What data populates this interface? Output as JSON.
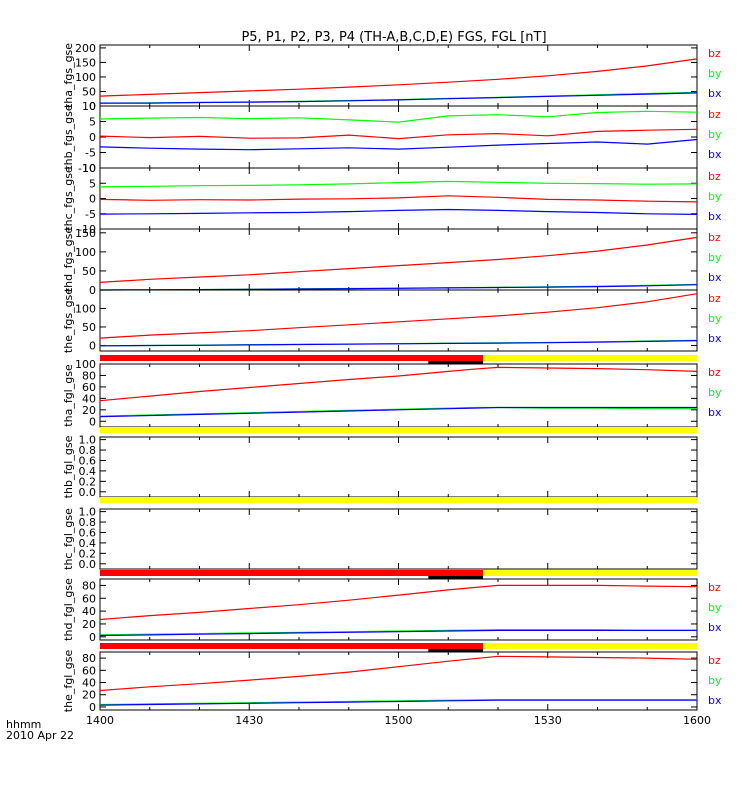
{
  "title": "P5, P1, P2, P3, P4 (TH-A,B,C,D,E) FGS, FGL [nT]",
  "time_axis": {
    "ticks": [
      "1400",
      "1430",
      "1500",
      "1530",
      "1600"
    ],
    "unit_label": "hhmm",
    "date_label": "2010 Apr 22"
  },
  "colors": {
    "bx": "#0000ff",
    "by": "#00ff00",
    "bz": "#ff0000",
    "bar_red": "#ff0000",
    "bar_yellow": "#ffff00",
    "axis": "#000000"
  },
  "chart_data": [
    {
      "type": "line",
      "ylabel": "tha_fgs_gse",
      "ylim": [
        0,
        210
      ],
      "yticks": [
        "200",
        "150",
        "100",
        "50",
        "0"
      ],
      "legend": [
        "bz",
        "by",
        "bx"
      ],
      "x": [
        1400,
        1410,
        1420,
        1430,
        1440,
        1450,
        1500,
        1510,
        1520,
        1530,
        1540,
        1550,
        1600
      ],
      "series": [
        {
          "name": "bz",
          "values": [
            34,
            40,
            46,
            52,
            58,
            65,
            73,
            82,
            92,
            104,
            119,
            138,
            162
          ]
        },
        {
          "name": "by",
          "values": [
            10,
            11,
            12,
            14,
            16,
            19,
            22,
            26,
            30,
            34,
            39,
            43,
            47
          ]
        },
        {
          "name": "bx",
          "values": [
            10,
            10,
            12,
            13,
            15,
            18,
            21,
            25,
            29,
            33,
            37,
            41,
            45
          ]
        }
      ]
    },
    {
      "type": "line",
      "ylabel": "thb_fgs_gse",
      "ylim": [
        -10,
        10
      ],
      "yticks": [
        "10",
        "5",
        "0",
        "-5",
        "-10"
      ],
      "legend": [
        "bz",
        "by",
        "bx"
      ],
      "x": [
        1400,
        1410,
        1420,
        1430,
        1440,
        1450,
        1500,
        1510,
        1520,
        1530,
        1540,
        1550,
        1600
      ],
      "series": [
        {
          "name": "bz",
          "values": [
            0.3,
            -0.2,
            0.2,
            -0.4,
            -0.3,
            0.6,
            -0.5,
            0.7,
            1.1,
            0.4,
            1.8,
            2.2,
            2.5
          ]
        },
        {
          "name": "by",
          "values": [
            5.8,
            6.1,
            6.3,
            5.9,
            6.2,
            5.5,
            4.8,
            6.8,
            7.2,
            6.5,
            7.9,
            8.3,
            8.0
          ]
        },
        {
          "name": "bx",
          "values": [
            -3.2,
            -3.6,
            -3.9,
            -4.1,
            -3.8,
            -3.5,
            -3.9,
            -3.3,
            -2.6,
            -2.1,
            -1.6,
            -2.3,
            -0.8
          ]
        }
      ]
    },
    {
      "type": "line",
      "ylabel": "thc_fgs_gse",
      "ylim": [
        -10,
        10
      ],
      "yticks": [
        "10",
        "5",
        "0",
        "-5",
        "-10"
      ],
      "legend": [
        "bz",
        "by",
        "bx"
      ],
      "x": [
        1400,
        1410,
        1420,
        1430,
        1440,
        1450,
        1500,
        1510,
        1520,
        1530,
        1540,
        1550,
        1600
      ],
      "series": [
        {
          "name": "bz",
          "values": [
            -0.3,
            -0.6,
            -0.4,
            -0.5,
            -0.2,
            -0.1,
            0.2,
            0.9,
            0.4,
            -0.3,
            -0.5,
            -0.9,
            -1.1
          ]
        },
        {
          "name": "by",
          "values": [
            3.8,
            4.0,
            4.2,
            4.3,
            4.5,
            4.8,
            5.2,
            5.6,
            5.3,
            5.0,
            4.9,
            4.7,
            4.8
          ]
        },
        {
          "name": "bx",
          "values": [
            -5.1,
            -5.0,
            -4.9,
            -4.7,
            -4.6,
            -4.3,
            -3.9,
            -3.6,
            -3.9,
            -4.3,
            -4.6,
            -5.0,
            -5.2
          ]
        }
      ]
    },
    {
      "type": "line",
      "ylabel": "thd_fgs_gse",
      "ylim": [
        0,
        160
      ],
      "yticks": [
        "150",
        "100",
        "50",
        "0"
      ],
      "legend": [
        "bz",
        "by",
        "bx"
      ],
      "x": [
        1400,
        1410,
        1420,
        1430,
        1440,
        1450,
        1500,
        1510,
        1520,
        1530,
        1540,
        1550,
        1600
      ],
      "series": [
        {
          "name": "bz",
          "values": [
            20,
            28,
            34,
            40,
            48,
            56,
            64,
            72,
            80,
            90,
            102,
            118,
            138
          ]
        },
        {
          "name": "by",
          "values": [
            0,
            0.5,
            1,
            2,
            3,
            4,
            5,
            6,
            7,
            8,
            10,
            12,
            15
          ]
        },
        {
          "name": "bx",
          "values": [
            0,
            0.5,
            1,
            1.5,
            2.5,
            3.5,
            4.5,
            5.5,
            6.5,
            7.5,
            9,
            11,
            14
          ]
        }
      ]
    },
    {
      "type": "line",
      "ylabel": "the_fgs_gse",
      "ylim": [
        -15,
        150
      ],
      "yticks": [
        "100",
        "50",
        "0"
      ],
      "legend": [
        "bz",
        "by",
        "bx"
      ],
      "x": [
        1400,
        1410,
        1420,
        1430,
        1440,
        1450,
        1500,
        1510,
        1520,
        1530,
        1540,
        1550,
        1600
      ],
      "series": [
        {
          "name": "bz",
          "values": [
            20,
            28,
            34,
            40,
            48,
            56,
            64,
            72,
            80,
            90,
            102,
            118,
            140
          ]
        },
        {
          "name": "by",
          "values": [
            -1,
            0,
            1,
            2,
            3,
            4,
            5,
            6,
            7,
            8,
            10,
            12,
            14
          ]
        },
        {
          "name": "bx",
          "values": [
            -1,
            0,
            0.5,
            1.5,
            2.5,
            3.5,
            4.5,
            5.5,
            6.5,
            7.5,
            9,
            11,
            13
          ]
        }
      ]
    },
    {
      "type": "line",
      "ylabel": "tha_fgl_gse",
      "ylim": [
        -10,
        100
      ],
      "yticks": [
        "100",
        "80",
        "60",
        "40",
        "20",
        "0"
      ],
      "legend": [
        "bz",
        "by",
        "bx"
      ],
      "bar": {
        "red_to": 1517,
        "marker_from": 1506,
        "marker_to": 1517
      },
      "x": [
        1400,
        1410,
        1420,
        1430,
        1440,
        1450,
        1500,
        1510,
        1515,
        1520,
        1530,
        1540,
        1550,
        1600
      ],
      "series": [
        {
          "name": "bz",
          "values": [
            36,
            44,
            52,
            59,
            66,
            73,
            79,
            87,
            91,
            94,
            93,
            92,
            90,
            87
          ]
        },
        {
          "name": "by",
          "values": [
            9,
            11,
            13,
            15,
            17,
            19,
            21,
            23,
            24,
            24,
            23,
            23,
            22,
            22
          ]
        },
        {
          "name": "bx",
          "values": [
            8,
            10,
            12,
            14,
            16,
            18,
            20,
            22,
            23,
            24,
            24,
            24,
            24,
            24
          ]
        }
      ]
    },
    {
      "type": "line",
      "ylabel": "thb_fgl_gse",
      "ylim": [
        -0.1,
        1.05
      ],
      "yticks": [
        "1.0",
        "0.8",
        "0.6",
        "0.4",
        "0.2",
        "0.0"
      ],
      "legend": [],
      "bar": {
        "red_to": 1400
      },
      "x": [],
      "series": []
    },
    {
      "type": "line",
      "ylabel": "thc_fgl_gse",
      "ylim": [
        -0.1,
        1.05
      ],
      "yticks": [
        "1.0",
        "0.8",
        "0.6",
        "0.4",
        "0.2",
        "0.0"
      ],
      "legend": [],
      "bar": {
        "red_to": 1400
      },
      "x": [],
      "series": []
    },
    {
      "type": "line",
      "ylabel": "thd_fgl_gse",
      "ylim": [
        -5,
        90
      ],
      "yticks": [
        "80",
        "60",
        "40",
        "20",
        "0"
      ],
      "legend": [
        "bz",
        "by",
        "bx"
      ],
      "bar": {
        "red_to": 1517,
        "marker_from": 1506,
        "marker_to": 1517
      },
      "x": [
        1400,
        1410,
        1420,
        1430,
        1440,
        1450,
        1500,
        1510,
        1520,
        1530,
        1540,
        1550,
        1600
      ],
      "series": [
        {
          "name": "bz",
          "values": [
            27,
            33,
            38,
            44,
            50,
            57,
            65,
            73,
            80,
            80,
            80,
            79,
            78
          ]
        },
        {
          "name": "by",
          "values": [
            3,
            4,
            5,
            6,
            7,
            8,
            9,
            10,
            11,
            11,
            11,
            10,
            10
          ]
        },
        {
          "name": "bx",
          "values": [
            2,
            3,
            4,
            5,
            6,
            7,
            8,
            9,
            10,
            10,
            10,
            10,
            10
          ]
        }
      ]
    },
    {
      "type": "line",
      "ylabel": "the_fgl_gse",
      "ylim": [
        -5,
        90
      ],
      "yticks": [
        "80",
        "60",
        "40",
        "20",
        "0"
      ],
      "legend": [
        "bz",
        "by",
        "bx"
      ],
      "bar": {
        "red_to": 1517,
        "marker_from": 1506,
        "marker_to": 1517
      },
      "x": [
        1400,
        1410,
        1420,
        1430,
        1440,
        1450,
        1500,
        1510,
        1520,
        1530,
        1540,
        1550,
        1600
      ],
      "series": [
        {
          "name": "bz",
          "values": [
            27,
            33,
            38,
            44,
            50,
            57,
            66,
            75,
            83,
            82,
            81,
            80,
            78
          ]
        },
        {
          "name": "by",
          "values": [
            4,
            5,
            6,
            7,
            8,
            9,
            10,
            11,
            12,
            12,
            12,
            12,
            12
          ]
        },
        {
          "name": "bx",
          "values": [
            3,
            4,
            5,
            6,
            7,
            8,
            9,
            10,
            11,
            11,
            11,
            11,
            11
          ]
        }
      ]
    }
  ]
}
